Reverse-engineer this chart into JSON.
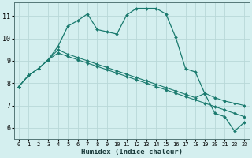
{
  "xlabel": "Humidex (Indice chaleur)",
  "bg_color": "#d4efef",
  "grid_color": "#b8d8d8",
  "line_color": "#1a7a6e",
  "x_range": [
    -0.5,
    23.5
  ],
  "y_range": [
    5.5,
    11.6
  ],
  "yticks": [
    6,
    7,
    8,
    9,
    10,
    11
  ],
  "xticks": [
    0,
    1,
    2,
    3,
    4,
    5,
    6,
    7,
    8,
    9,
    10,
    11,
    12,
    13,
    14,
    15,
    16,
    17,
    18,
    19,
    20,
    21,
    22,
    23
  ],
  "series1_x": [
    0,
    1,
    2,
    3,
    4,
    5,
    6,
    7,
    8,
    9,
    10,
    11,
    12,
    13,
    14,
    15,
    16,
    17,
    18,
    19,
    20,
    21,
    22,
    23
  ],
  "series1_y": [
    7.85,
    8.35,
    8.65,
    9.05,
    9.35,
    9.2,
    9.05,
    8.9,
    8.75,
    8.6,
    8.45,
    8.3,
    8.15,
    8.0,
    7.85,
    7.7,
    7.55,
    7.4,
    7.25,
    7.1,
    6.95,
    6.8,
    6.65,
    6.5
  ],
  "series2_x": [
    0,
    1,
    2,
    3,
    4,
    5,
    6,
    7,
    8,
    9,
    10,
    11,
    12,
    13,
    14,
    15,
    16,
    17,
    18,
    19,
    20,
    21,
    22,
    23
  ],
  "series2_y": [
    7.85,
    8.35,
    8.65,
    9.05,
    9.5,
    9.3,
    9.15,
    9.0,
    8.85,
    8.7,
    8.55,
    8.4,
    8.25,
    8.1,
    7.95,
    7.8,
    7.65,
    7.5,
    7.35,
    7.55,
    7.35,
    7.2,
    7.1,
    7.0
  ],
  "series3_x": [
    0,
    1,
    2,
    3,
    4,
    5,
    6,
    7,
    8,
    9,
    10,
    11,
    12,
    13,
    14,
    15,
    16,
    17,
    18,
    19,
    20,
    21,
    22,
    23
  ],
  "series3_y": [
    7.85,
    8.35,
    8.65,
    9.05,
    9.65,
    10.55,
    10.8,
    11.1,
    10.4,
    10.3,
    10.2,
    11.05,
    11.35,
    11.35,
    11.35,
    11.1,
    10.05,
    8.65,
    8.5,
    7.5,
    6.65,
    6.5,
    5.85,
    6.25
  ]
}
